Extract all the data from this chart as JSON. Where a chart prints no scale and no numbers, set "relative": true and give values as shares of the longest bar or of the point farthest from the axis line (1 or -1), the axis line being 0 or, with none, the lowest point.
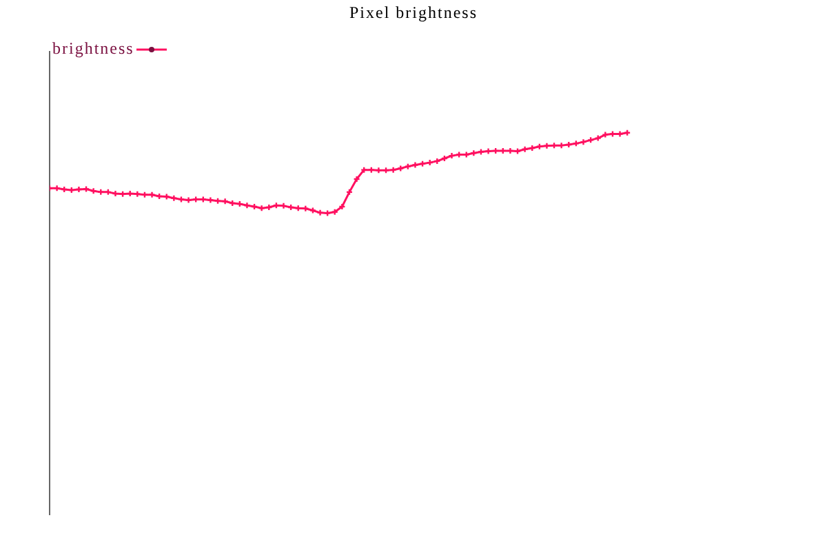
{
  "chart_data": {
    "type": "line",
    "title": "Pixel brightness",
    "relative": true,
    "legend": "top left",
    "marker": "cross",
    "line_style": "solid",
    "grid": false,
    "categories": [
      null,
      null,
      null,
      null,
      null,
      null,
      null,
      null,
      null,
      null,
      null,
      null,
      null,
      null,
      null,
      null,
      null,
      null,
      null,
      null,
      null,
      null,
      null,
      null,
      null,
      null,
      null,
      null,
      null,
      null,
      null,
      null,
      null,
      null,
      null,
      null,
      null,
      null,
      null,
      null,
      null,
      null,
      null,
      null,
      null,
      null,
      null,
      null,
      null,
      null,
      null,
      null,
      null,
      null,
      null,
      null,
      null,
      null,
      null,
      null,
      null,
      null,
      null,
      null,
      null,
      null,
      null,
      null,
      null,
      null,
      null,
      null,
      null,
      null,
      null,
      null,
      null,
      null,
      null,
      null,
      null,
      null,
      null,
      null,
      null,
      null,
      null,
      null,
      null,
      null,
      null,
      null,
      null,
      null,
      null,
      null,
      null,
      null,
      null,
      null,
      null,
      null,
      null,
      null,
      null,
      null
    ],
    "series": [
      {
        "name": "brightness",
        "color": "#ff1060",
        "values": [
          0.855,
          0.855,
          0.852,
          0.85,
          0.852,
          0.853,
          0.848,
          0.845,
          0.845,
          0.841,
          0.84,
          0.841,
          0.84,
          0.838,
          0.838,
          0.834,
          0.833,
          0.829,
          0.826,
          0.824,
          0.826,
          0.826,
          0.824,
          0.822,
          0.821,
          0.816,
          0.814,
          0.81,
          0.807,
          0.803,
          0.805,
          0.81,
          0.809,
          0.805,
          0.803,
          0.802,
          0.797,
          0.791,
          0.79,
          0.793,
          0.807,
          0.845,
          0.879,
          0.903,
          0.903,
          0.902,
          0.902,
          0.903,
          0.907,
          0.912,
          0.916,
          0.919,
          0.922,
          0.926,
          0.933,
          0.94,
          0.943,
          0.943,
          0.947,
          0.95,
          0.952,
          0.953,
          0.953,
          0.953,
          0.952,
          0.957,
          0.96,
          0.964,
          0.966,
          0.967,
          0.967,
          0.969,
          0.972,
          0.976,
          0.981,
          0.986,
          0.995,
          0.997,
          0.997,
          1,
          null,
          null,
          null,
          null,
          null,
          null,
          null,
          null,
          null,
          null,
          null,
          null,
          null,
          null,
          null,
          null,
          null,
          null,
          null,
          null,
          null,
          null,
          null,
          null,
          null,
          null
        ]
      }
    ]
  }
}
